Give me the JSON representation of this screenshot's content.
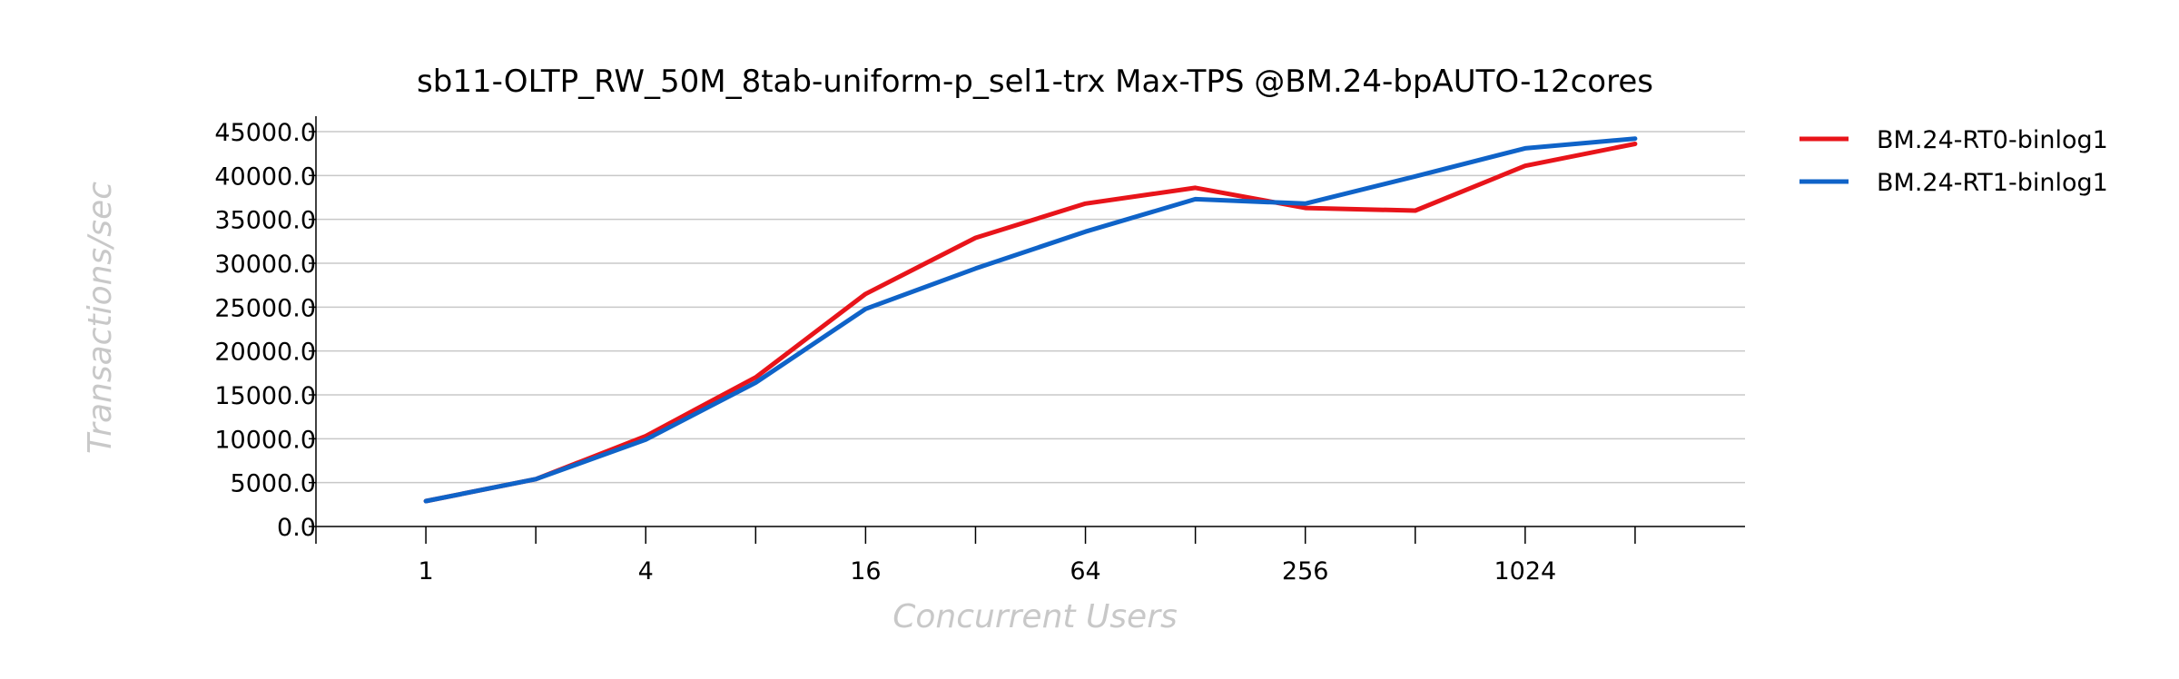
{
  "chart_data": {
    "type": "line",
    "title": "sb11-OLTP_RW_50M_8tab-uniform-p_sel1-trx Max-TPS @BM.24-bpAUTO-12cores",
    "xlabel": "Concurrent Users",
    "ylabel": "Transactions/sec",
    "x_scale": "log2",
    "x": [
      1,
      2,
      4,
      8,
      16,
      32,
      64,
      128,
      256,
      512,
      1024,
      2048
    ],
    "x_tick_labels": [
      "1",
      "4",
      "16",
      "64",
      "256",
      "1024"
    ],
    "x_tick_values": [
      1,
      4,
      16,
      64,
      256,
      1024
    ],
    "xlim": [
      0.5,
      4096
    ],
    "ylim": [
      0,
      45000
    ],
    "y_tick_labels": [
      "0.0",
      "5000.0",
      "10000.0",
      "15000.0",
      "20000.0",
      "25000.0",
      "30000.0",
      "35000.0",
      "40000.0",
      "45000.0"
    ],
    "grid": true,
    "legend_position": "right",
    "series": [
      {
        "name": "BM.24-RT0-binlog1",
        "color": "#e8141a",
        "values": [
          2900,
          5400,
          10300,
          17000,
          26500,
          32900,
          36800,
          38600,
          36300,
          36000,
          41100,
          43600
        ]
      },
      {
        "name": "BM.24-RT1-binlog1",
        "color": "#0f63c8",
        "values": [
          2900,
          5400,
          9900,
          16400,
          24800,
          29400,
          33600,
          37300,
          36800,
          39900,
          43100,
          44200
        ]
      }
    ]
  }
}
